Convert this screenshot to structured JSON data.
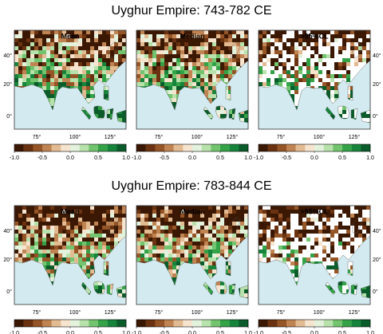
{
  "sections": [
    {
      "title": "Uyghur Empire:  743-782 CE",
      "panels": [
        {
          "title": "Mean"
        },
        {
          "title": "Median"
        },
        {
          "title": ">95%CL"
        }
      ]
    },
    {
      "title": "Uyghur Empire:  783-844 CE",
      "panels": [
        {
          "title": "Mean"
        },
        {
          "title": "Median"
        },
        {
          "title": ">95%CL"
        }
      ]
    }
  ],
  "lat_ticks": [
    "40°",
    "20°",
    "0°"
  ],
  "lon_ticks": [
    "75°",
    "100°",
    "125°"
  ],
  "colorbar": {
    "colors": [
      "#3b1804",
      "#6a3210",
      "#955527",
      "#c08352",
      "#e3bb92",
      "#f6e4cf",
      "#e3f2dc",
      "#b8e2ac",
      "#72c46e",
      "#34a348",
      "#17843c",
      "#0b5c2b"
    ],
    "range": [
      -1,
      1
    ],
    "ticks": [
      {
        "value": -1,
        "label": "-1.0"
      },
      {
        "value": -0.5,
        "label": "-0.5"
      },
      {
        "value": 0,
        "label": "0.0"
      },
      {
        "value": 0.5,
        "label": "0.5"
      },
      {
        "value": 1,
        "label": "1.0"
      }
    ]
  }
}
